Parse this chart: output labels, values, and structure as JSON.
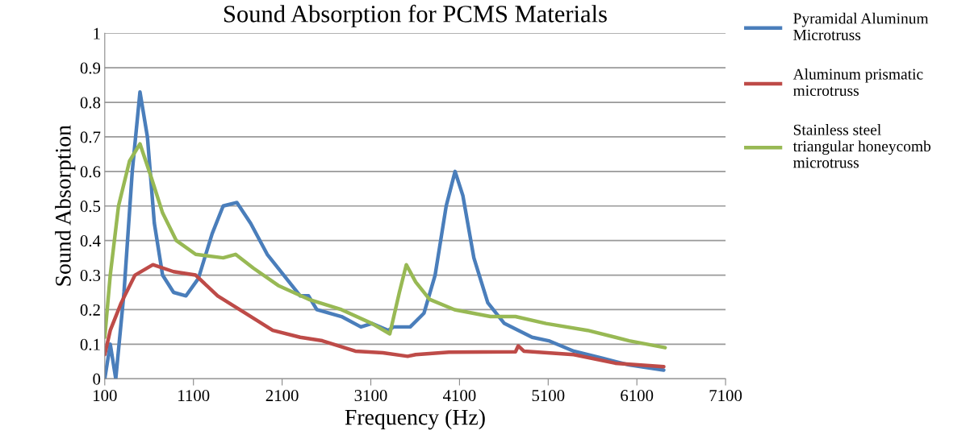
{
  "chart_data": {
    "type": "line",
    "title": "Sound Absorption for PCMS Materials",
    "xlabel": "Frequency (Hz)",
    "ylabel": "Sound Absorption",
    "xlim": [
      100,
      7100
    ],
    "xticks": [
      100,
      1100,
      2100,
      3100,
      4100,
      5100,
      6100,
      7100
    ],
    "ylim": [
      0,
      1
    ],
    "yticks": [
      0,
      0.1,
      0.2,
      0.3,
      0.4,
      0.5,
      0.6,
      0.7,
      0.8,
      0.9,
      1
    ],
    "grid": "y",
    "legend": "right",
    "marker": "none",
    "line_style": "solid",
    "series": [
      {
        "name": "Pyramidal Aluminum Microtruss",
        "color": "#4a7ebb",
        "x": [
          100,
          162,
          224,
          317,
          410,
          497,
          581,
          659,
          752,
          876,
          1016,
          1155,
          1311,
          1435,
          1590,
          1745,
          1932,
          2118,
          2304,
          2398,
          2491,
          2770,
          2988,
          3112,
          3298,
          3356,
          3544,
          3700,
          3825,
          3950,
          4050,
          4138,
          4262,
          4419,
          4606,
          4919,
          5106,
          5388,
          5700,
          6013,
          6403
        ],
        "values": [
          0,
          0.1,
          0,
          0.25,
          0.6,
          0.83,
          0.7,
          0.45,
          0.3,
          0.25,
          0.24,
          0.29,
          0.42,
          0.5,
          0.51,
          0.45,
          0.36,
          0.3,
          0.24,
          0.24,
          0.2,
          0.18,
          0.15,
          0.16,
          0.14,
          0.15,
          0.15,
          0.19,
          0.3,
          0.5,
          0.6,
          0.53,
          0.35,
          0.22,
          0.16,
          0.12,
          0.11,
          0.08,
          0.06,
          0.04,
          0.025
        ]
      },
      {
        "name": "Aluminum prismatic microtruss",
        "color": "#be4b48",
        "x": [
          100,
          162,
          286,
          441,
          643,
          876,
          1125,
          1373,
          1683,
          1994,
          2304,
          2553,
          2925,
          3236,
          3516,
          3606,
          3981,
          4731,
          4762,
          4825,
          5388,
          5856,
          6403
        ],
        "values": [
          0.07,
          0.14,
          0.22,
          0.3,
          0.33,
          0.31,
          0.3,
          0.24,
          0.19,
          0.14,
          0.12,
          0.11,
          0.08,
          0.075,
          0.065,
          0.07,
          0.077,
          0.078,
          0.095,
          0.08,
          0.07,
          0.045,
          0.035
        ]
      },
      {
        "name": "Stainless steel triangular honeycomb microtruss",
        "color": "#98b954",
        "x": [
          100,
          162,
          255,
          379,
          497,
          628,
          752,
          907,
          1125,
          1435,
          1575,
          1777,
          2056,
          2398,
          2770,
          3112,
          3314,
          3422,
          3500,
          3606,
          3762,
          4044,
          4450,
          4731,
          5075,
          5544,
          6013,
          6419
        ],
        "values": [
          0.12,
          0.3,
          0.5,
          0.63,
          0.68,
          0.58,
          0.48,
          0.4,
          0.36,
          0.35,
          0.36,
          0.32,
          0.27,
          0.23,
          0.2,
          0.16,
          0.13,
          0.25,
          0.33,
          0.28,
          0.23,
          0.2,
          0.18,
          0.18,
          0.16,
          0.14,
          0.11,
          0.09
        ]
      }
    ]
  }
}
